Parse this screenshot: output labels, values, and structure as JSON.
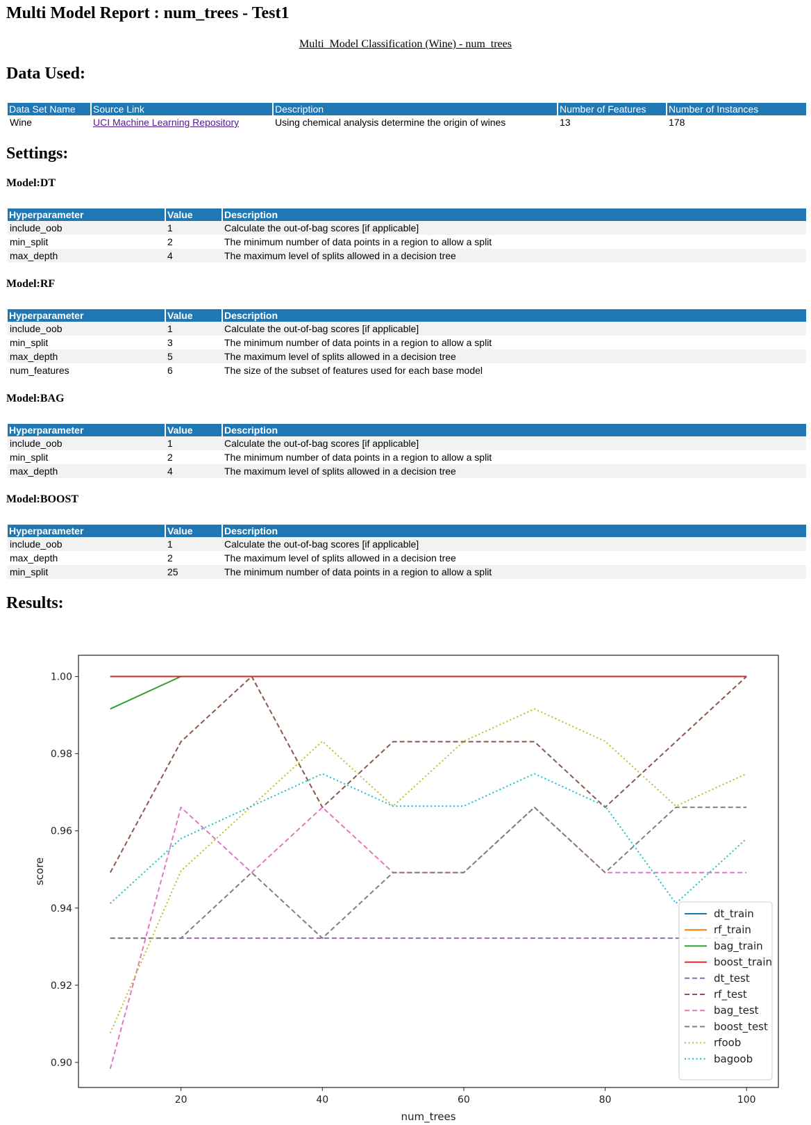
{
  "title": "Multi Model Report : num_trees - Test1",
  "subtitle": "Multi_Model Classification (Wine) - num_trees",
  "data_used": {
    "heading": "Data Used:",
    "headers": [
      "Data Set Name",
      "Source Link",
      "Description",
      "Number of Features",
      "Number of Instances"
    ],
    "row": {
      "name": "Wine",
      "source": "UCI Machine Learning Repository",
      "description": "Using chemical analysis determine the origin of wines",
      "features": "13",
      "instances": "178"
    }
  },
  "settings": {
    "heading": "Settings:",
    "headers": [
      "Hyperparameter",
      "Value",
      "Description"
    ],
    "models": [
      {
        "title": "Model:DT",
        "rows": [
          [
            "include_oob",
            "1",
            "Calculate the out-of-bag scores [if applicable]"
          ],
          [
            "min_split",
            "2",
            "The minimum number of data points in a region to allow a split"
          ],
          [
            "max_depth",
            "4",
            "The maximum level of splits allowed in a decision tree"
          ]
        ]
      },
      {
        "title": "Model:RF",
        "rows": [
          [
            "include_oob",
            "1",
            "Calculate the out-of-bag scores [if applicable]"
          ],
          [
            "min_split",
            "3",
            "The minimum number of data points in a region to allow a split"
          ],
          [
            "max_depth",
            "5",
            "The maximum level of splits allowed in a decision tree"
          ],
          [
            "num_features",
            "6",
            "The size of the subset of features used for each base model"
          ]
        ]
      },
      {
        "title": "Model:BAG",
        "rows": [
          [
            "include_oob",
            "1",
            "Calculate the out-of-bag scores [if applicable]"
          ],
          [
            "min_split",
            "2",
            "The minimum number of data points in a region to allow a split"
          ],
          [
            "max_depth",
            "4",
            "The maximum level of splits allowed in a decision tree"
          ]
        ]
      },
      {
        "title": "Model:BOOST",
        "rows": [
          [
            "include_oob",
            "1",
            "Calculate the out-of-bag scores [if applicable]"
          ],
          [
            "max_depth",
            "2",
            "The maximum level of splits allowed in a decision tree"
          ],
          [
            "min_split",
            "25",
            "The minimum number of data points in a region to allow a split"
          ]
        ]
      }
    ]
  },
  "results": {
    "heading": "Results:"
  },
  "chart_data": {
    "type": "line",
    "title": "",
    "xlabel": "num_trees",
    "ylabel": "score",
    "xlim": [
      5.5,
      104.5
    ],
    "ylim": [
      0.8935,
      1.0055
    ],
    "xticks": [
      20,
      40,
      60,
      80,
      100
    ],
    "yticks": [
      0.9,
      0.92,
      0.94,
      0.96,
      0.98,
      1.0
    ],
    "ytick_labels": [
      "0.90",
      "0.92",
      "0.94",
      "0.96",
      "0.98",
      "1.00"
    ],
    "grid": false,
    "legend_position": "lower-right",
    "x": [
      10,
      20,
      30,
      40,
      50,
      60,
      70,
      80,
      90,
      100
    ],
    "series": [
      {
        "name": "dt_train",
        "color": "#1f77b4",
        "style": "solid",
        "values": [
          1.0,
          1.0,
          1.0,
          1.0,
          1.0,
          1.0,
          1.0,
          1.0,
          1.0,
          1.0
        ]
      },
      {
        "name": "rf_train",
        "color": "#ff7f0e",
        "style": "solid",
        "values": [
          1.0,
          1.0,
          1.0,
          1.0,
          1.0,
          1.0,
          1.0,
          1.0,
          1.0,
          1.0
        ]
      },
      {
        "name": "bag_train",
        "color": "#2ca02c",
        "style": "solid",
        "values": [
          0.9916,
          1.0,
          1.0,
          1.0,
          1.0,
          1.0,
          1.0,
          1.0,
          1.0,
          1.0
        ]
      },
      {
        "name": "boost_train",
        "color": "#d62728",
        "style": "solid",
        "values": [
          1.0,
          1.0,
          1.0,
          1.0,
          1.0,
          1.0,
          1.0,
          1.0,
          1.0,
          1.0
        ]
      },
      {
        "name": "dt_test",
        "color": "#9467bd",
        "style": "dashed",
        "values": [
          0.9322,
          0.9322,
          0.9322,
          0.9322,
          0.9322,
          0.9322,
          0.9322,
          0.9322,
          0.9322,
          0.9322
        ]
      },
      {
        "name": "rf_test",
        "color": "#8c564b",
        "style": "dashed",
        "values": [
          0.9492,
          0.9831,
          1.0,
          0.9661,
          0.9831,
          0.9831,
          0.9831,
          0.9661,
          0.9831,
          1.0
        ]
      },
      {
        "name": "bag_test",
        "color": "#e377c2",
        "style": "dashed",
        "values": [
          0.8983,
          0.9661,
          0.9492,
          0.9661,
          0.9492,
          0.9492,
          0.9661,
          0.9492,
          0.9492,
          0.9492
        ]
      },
      {
        "name": "boost_test",
        "color": "#7f7f7f",
        "style": "dashed",
        "values": [
          0.9322,
          0.9322,
          0.9492,
          0.9322,
          0.9492,
          0.9492,
          0.9661,
          0.9492,
          0.9661,
          0.9661
        ]
      },
      {
        "name": "rfoob",
        "color": "#bcbd22",
        "style": "dotted",
        "values": [
          0.9076,
          0.9496,
          0.9664,
          0.9832,
          0.9664,
          0.9832,
          0.9916,
          0.9832,
          0.9664,
          0.9748
        ]
      },
      {
        "name": "bagoob",
        "color": "#17becf",
        "style": "dotted",
        "values": [
          0.9412,
          0.958,
          0.9664,
          0.9748,
          0.9664,
          0.9664,
          0.9748,
          0.9664,
          0.9412,
          0.958
        ]
      }
    ]
  }
}
